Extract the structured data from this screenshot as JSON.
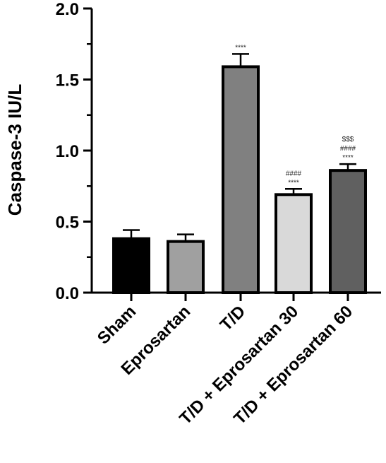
{
  "chart_data": {
    "type": "bar",
    "title": "",
    "xlabel": "",
    "ylabel": "Caspase-3 IU/L",
    "ylim": [
      0,
      2.0
    ],
    "yticks": [
      "0.0",
      "0.5",
      "1.0",
      "1.5",
      "2.0"
    ],
    "grid": false,
    "categories": [
      "Sham",
      "Eprosartan",
      "T/D",
      "T/D + Eprosartan 30",
      "T/D + Eprosartan 60"
    ],
    "values": [
      0.38,
      0.36,
      1.59,
      0.69,
      0.86
    ],
    "errors": [
      0.06,
      0.05,
      0.09,
      0.04,
      0.045
    ],
    "colors": [
      "#000000",
      "#a0a0a0",
      "#808080",
      "#d9d9d9",
      "#606060"
    ],
    "annotations": [
      [],
      [],
      [
        "****"
      ],
      [
        "####",
        "****"
      ],
      [
        "$$$",
        "####",
        "****"
      ]
    ]
  }
}
